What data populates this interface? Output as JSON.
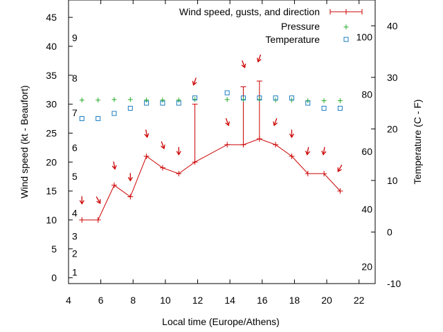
{
  "chart_data": {
    "type": "line",
    "xlabel": "Local time (Europe/Athens)",
    "ylabel_left": "Wind speed (kt - Beaufort)",
    "ylabel_right": "Temperature (C - F)",
    "xlim": [
      4,
      23
    ],
    "ylim_left": [
      -1,
      48
    ],
    "ylim_right_celsius": [
      -10,
      45
    ],
    "x_ticks": [
      "4",
      "6",
      "8",
      "10",
      "12",
      "14",
      "16",
      "18",
      "20",
      "22"
    ],
    "y_left_ticks": [
      "0",
      "5",
      "10",
      "15",
      "20",
      "25",
      "30",
      "35",
      "40",
      "45"
    ],
    "y_right_ticks": [
      "-10",
      "0",
      "10",
      "20",
      "30",
      "40"
    ],
    "beaufort_labels": [
      {
        "label": "1",
        "kt": 1
      },
      {
        "label": "2",
        "kt": 4.2
      },
      {
        "label": "3",
        "kt": 7.2
      },
      {
        "label": "4",
        "kt": 11.2
      },
      {
        "label": "5",
        "kt": 17.5
      },
      {
        "label": "6",
        "kt": 22.5
      },
      {
        "label": "7",
        "kt": 28.5
      },
      {
        "label": "8",
        "kt": 34.5
      },
      {
        "label": "9",
        "kt": 41.5
      }
    ],
    "fahrenheit_labels": [
      {
        "label": "20",
        "celsius": -6.7
      },
      {
        "label": "40",
        "celsius": 4.4
      },
      {
        "label": "60",
        "celsius": 15.6
      },
      {
        "label": "80",
        "celsius": 26.7
      },
      {
        "label": "100",
        "celsius": 37.8
      }
    ],
    "legend": {
      "position": "top-right",
      "wind": "Wind speed, gusts, and direction",
      "pressure": "Pressure",
      "temperature": "Temperature"
    },
    "colors": {
      "wind": "#cc0000",
      "pressure": "#22aa22",
      "temperature": "#1a7bc0"
    },
    "wind_series": {
      "x": [
        4.83,
        5.83,
        6.83,
        7.83,
        8.83,
        9.83,
        10.83,
        11.83,
        13.83,
        14.83,
        15.83,
        16.83,
        17.83,
        18.83,
        19.83,
        20.83
      ],
      "speed": [
        10,
        10,
        16,
        14,
        21,
        19,
        18,
        20,
        23,
        23,
        24,
        23,
        21,
        18,
        18,
        15
      ],
      "gust": [
        null,
        null,
        null,
        null,
        null,
        null,
        null,
        30,
        null,
        33,
        34,
        null,
        null,
        null,
        null,
        null
      ],
      "arrow_kt": [
        13.5,
        13.5,
        19.5,
        17.5,
        25,
        23,
        22,
        34,
        27,
        37,
        38,
        27,
        25,
        22,
        22,
        19
      ],
      "direction_deg": [
        0,
        330,
        350,
        0,
        350,
        340,
        0,
        20,
        340,
        340,
        20,
        20,
        0,
        10,
        10,
        30
      ]
    },
    "pressure_series": {
      "x": [
        4.83,
        5.83,
        6.83,
        7.83,
        8.83,
        9.83,
        10.83,
        11.83,
        13.83,
        14.83,
        15.83,
        16.83,
        17.83,
        18.83,
        19.83,
        20.83
      ],
      "y_kt_scale": [
        30.7,
        30.7,
        30.8,
        30.8,
        30.7,
        30.7,
        30.7,
        30.8,
        30.8,
        30.8,
        30.8,
        30.7,
        30.7,
        30.6,
        30.6,
        30.6
      ]
    },
    "temperature_series": {
      "x": [
        4.83,
        5.83,
        6.83,
        7.83,
        8.83,
        9.83,
        10.83,
        11.83,
        13.83,
        14.83,
        15.83,
        16.83,
        17.83,
        18.83,
        19.83,
        20.83
      ],
      "celsius": [
        22,
        22,
        23,
        24,
        25,
        25,
        25,
        26,
        27,
        26,
        26,
        26,
        26,
        25,
        24,
        24
      ]
    }
  }
}
